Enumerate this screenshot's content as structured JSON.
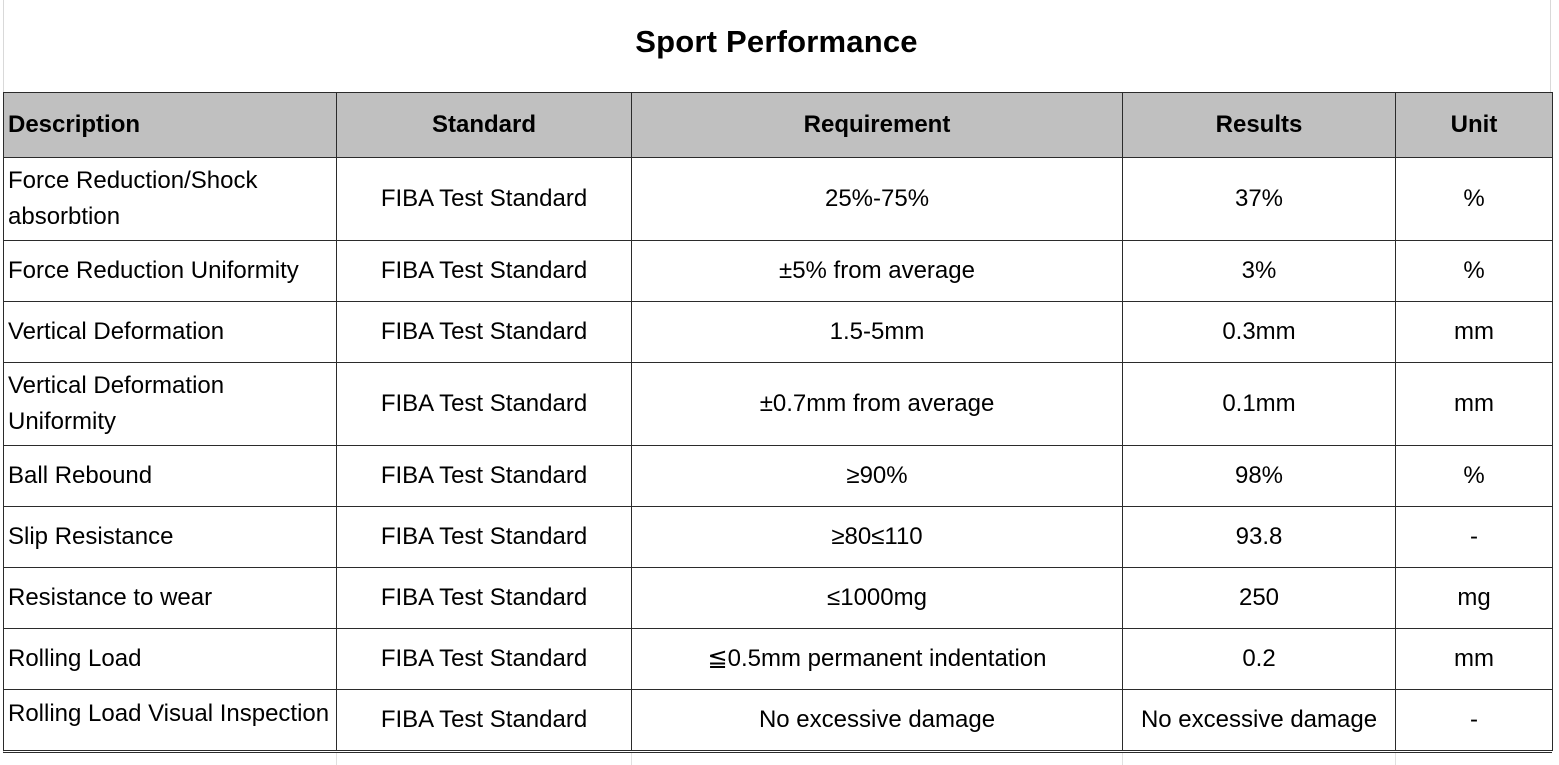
{
  "title": "Sport Performance",
  "table": {
    "headers": {
      "description": "Description",
      "standard": "Standard",
      "requirement": "Requirement",
      "results": "Results",
      "unit": "Unit"
    },
    "rows": [
      {
        "description": "Force Reduction/Shock absorbtion",
        "standard": "FIBA Test Standard",
        "requirement": "25%-75%",
        "results": "37%",
        "unit": "%"
      },
      {
        "description": "Force Reduction Uniformity",
        "standard": "FIBA Test Standard",
        "requirement": "±5% from average",
        "results": "3%",
        "unit": "%"
      },
      {
        "description": "Vertical Deformation",
        "standard": "FIBA Test Standard",
        "requirement": "1.5-5mm",
        "results": "0.3mm",
        "unit": "mm"
      },
      {
        "description": "Vertical Deformation Uniformity",
        "standard": "FIBA Test Standard",
        "requirement": "±0.7mm from average",
        "results": "0.1mm",
        "unit": "mm"
      },
      {
        "description": "Ball Rebound",
        "standard": "FIBA Test Standard",
        "requirement": "≥90%",
        "results": "98%",
        "unit": "%"
      },
      {
        "description": "Slip Resistance",
        "standard": "FIBA Test Standard",
        "requirement": "≥80≤110",
        "results": "93.8",
        "unit": "-"
      },
      {
        "description": "Resistance to wear",
        "standard": "FIBA Test Standard",
        "requirement": "≤1000mg",
        "results": "250",
        "unit": "mg"
      },
      {
        "description": "Rolling Load",
        "standard": "FIBA Test Standard",
        "requirement": "≦0.5mm permanent indentation",
        "results": "0.2",
        "unit": "mm"
      },
      {
        "description": "Rolling Load Visual Inspection",
        "standard": "FIBA Test Standard",
        "requirement": "No excessive damage",
        "results": "No excessive damage",
        "unit": "-"
      }
    ]
  }
}
